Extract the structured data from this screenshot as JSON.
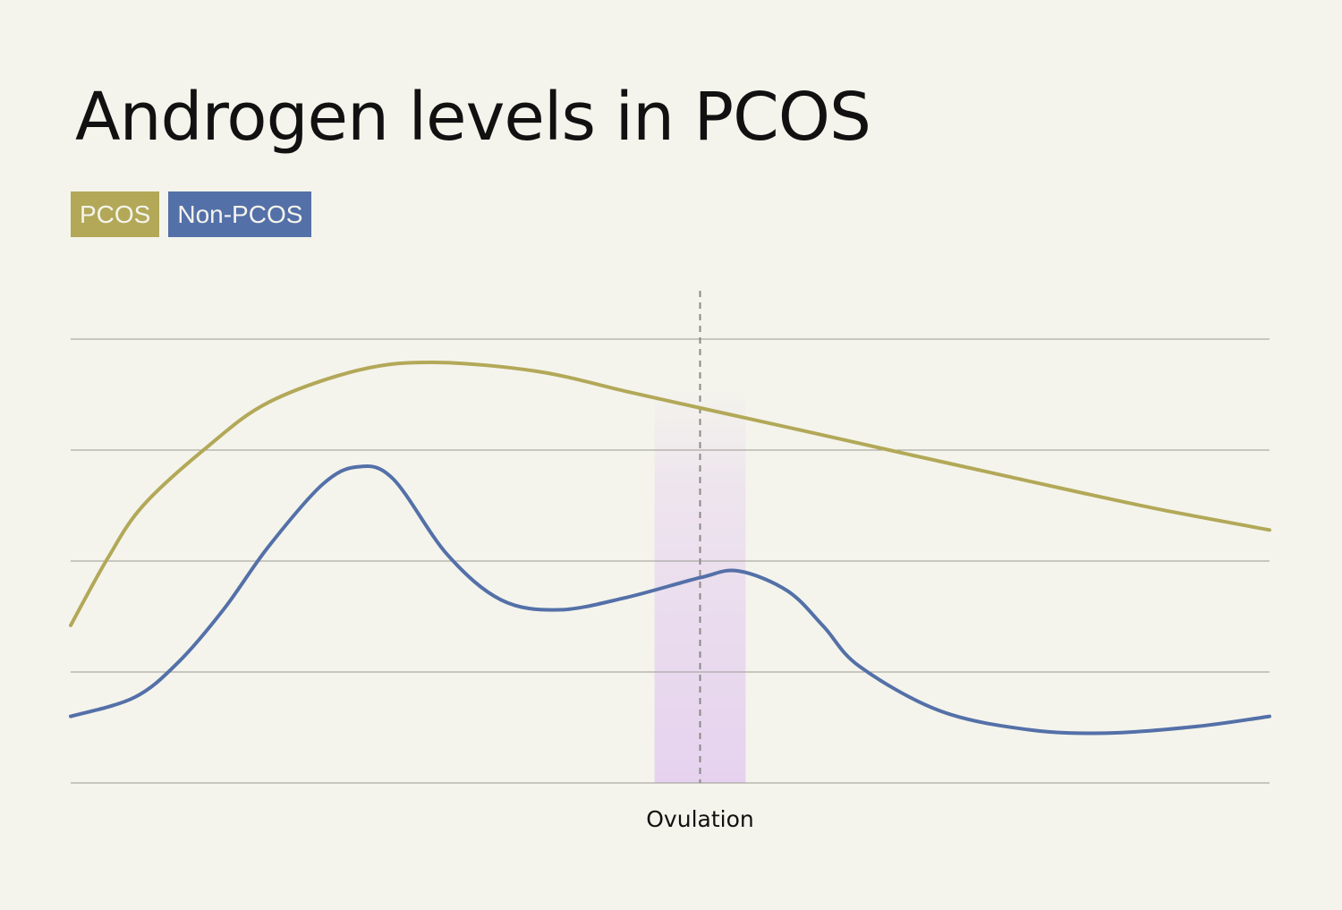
{
  "chart_data": {
    "type": "line",
    "title": "Androgen levels in PCOS",
    "xlabel": "",
    "ylabel": "",
    "xlim": [
      0,
      100
    ],
    "ylim": [
      0,
      4
    ],
    "grid": true,
    "legend_position": "top-left",
    "annotations": [
      {
        "label": "Ovulation",
        "x": 52.5,
        "band": [
          48.7,
          56.3
        ],
        "color": "#e6d2ef"
      }
    ],
    "series": [
      {
        "name": "PCOS",
        "color": "#b2a858",
        "x": [
          0,
          3.06,
          6.04,
          11.3,
          16.5,
          24,
          30.3,
          38.9,
          46.3,
          52.5,
          61.3,
          68.7,
          76.2,
          83.7,
          91.1,
          100
        ],
        "y": [
          1.42,
          2.02,
          2.5,
          3.02,
          3.43,
          3.72,
          3.79,
          3.71,
          3.53,
          3.38,
          3.17,
          2.99,
          2.81,
          2.63,
          2.46,
          2.28
        ]
      },
      {
        "name": "Non-PCOS",
        "color": "#5470a8",
        "x": [
          0,
          5.3,
          9.0,
          12.8,
          16.5,
          21,
          24,
          26.9,
          31.4,
          35.9,
          40.7,
          46.3,
          52.5,
          55.7,
          59.8,
          62.8,
          65.8,
          72.5,
          79.9,
          86.6,
          94,
          100
        ],
        "y": [
          0.6,
          0.77,
          1.09,
          1.57,
          2.13,
          2.69,
          2.85,
          2.74,
          2.06,
          1.65,
          1.56,
          1.67,
          1.85,
          1.91,
          1.73,
          1.41,
          1.05,
          0.65,
          0.48,
          0.45,
          0.51,
          0.6
        ]
      }
    ]
  }
}
